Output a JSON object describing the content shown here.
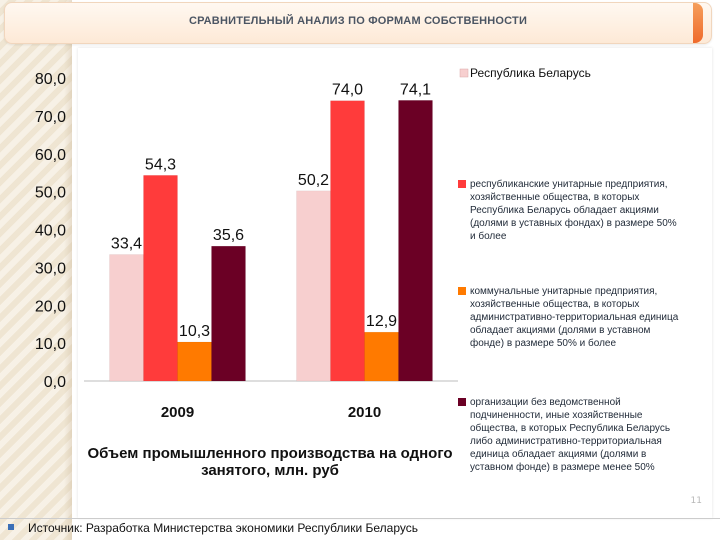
{
  "title": "СРАВНИТЕЛЬНЫЙ АНАЛИЗ ПО ФОРМАМ СОБСТВЕННОСТИ",
  "legend_title": "Республика Беларусь",
  "caption": "Объем промышленного производства на одного занятого, млн. руб",
  "slide_number": "11",
  "footer": "Источник: Разработка Министерства экономики Республики Беларусь",
  "colors": {
    "series_1": "#f7cfcf",
    "series_2": "#ff3b3b",
    "series_3": "#ff7a00",
    "series_4": "#6b0025"
  },
  "chart_data": {
    "type": "bar",
    "categories": [
      "2009",
      "2010"
    ],
    "ylim": [
      0,
      80
    ],
    "yticks": [
      "0,0",
      "10,0",
      "20,0",
      "30,0",
      "40,0",
      "50,0",
      "60,0",
      "70,0",
      "80,0"
    ],
    "series": [
      {
        "name": "Республика Беларусь",
        "values": [
          33.4,
          50.2
        ],
        "labels": [
          "33,4",
          "50,2"
        ]
      },
      {
        "name": "республиканские унитарные предприятия, хозяйственные общества, в которых Республика Беларусь обладает акциями (долями в уставных фондах) в размере 50% и более",
        "values": [
          54.3,
          74.0
        ],
        "labels": [
          "54,3",
          "74,0"
        ]
      },
      {
        "name": "коммунальные унитарные предприятия, хозяйственные общества, в которых административно-территориальная единица обладает акциями (долями в уставном фонде) в размере 50% и более",
        "values": [
          10.3,
          12.9
        ],
        "labels": [
          "10,3",
          "12,9"
        ]
      },
      {
        "name": "организации без ведомственной подчиненности, иные хозяйственные общества, в которых Республика Беларусь либо административно-территориальная единица обладает акциями (долями в уставном фонде) в размере менее 50%",
        "values": [
          35.6,
          74.1
        ],
        "labels": [
          "35,6",
          "74,1"
        ]
      }
    ],
    "grid": false,
    "legend_position": "right"
  }
}
